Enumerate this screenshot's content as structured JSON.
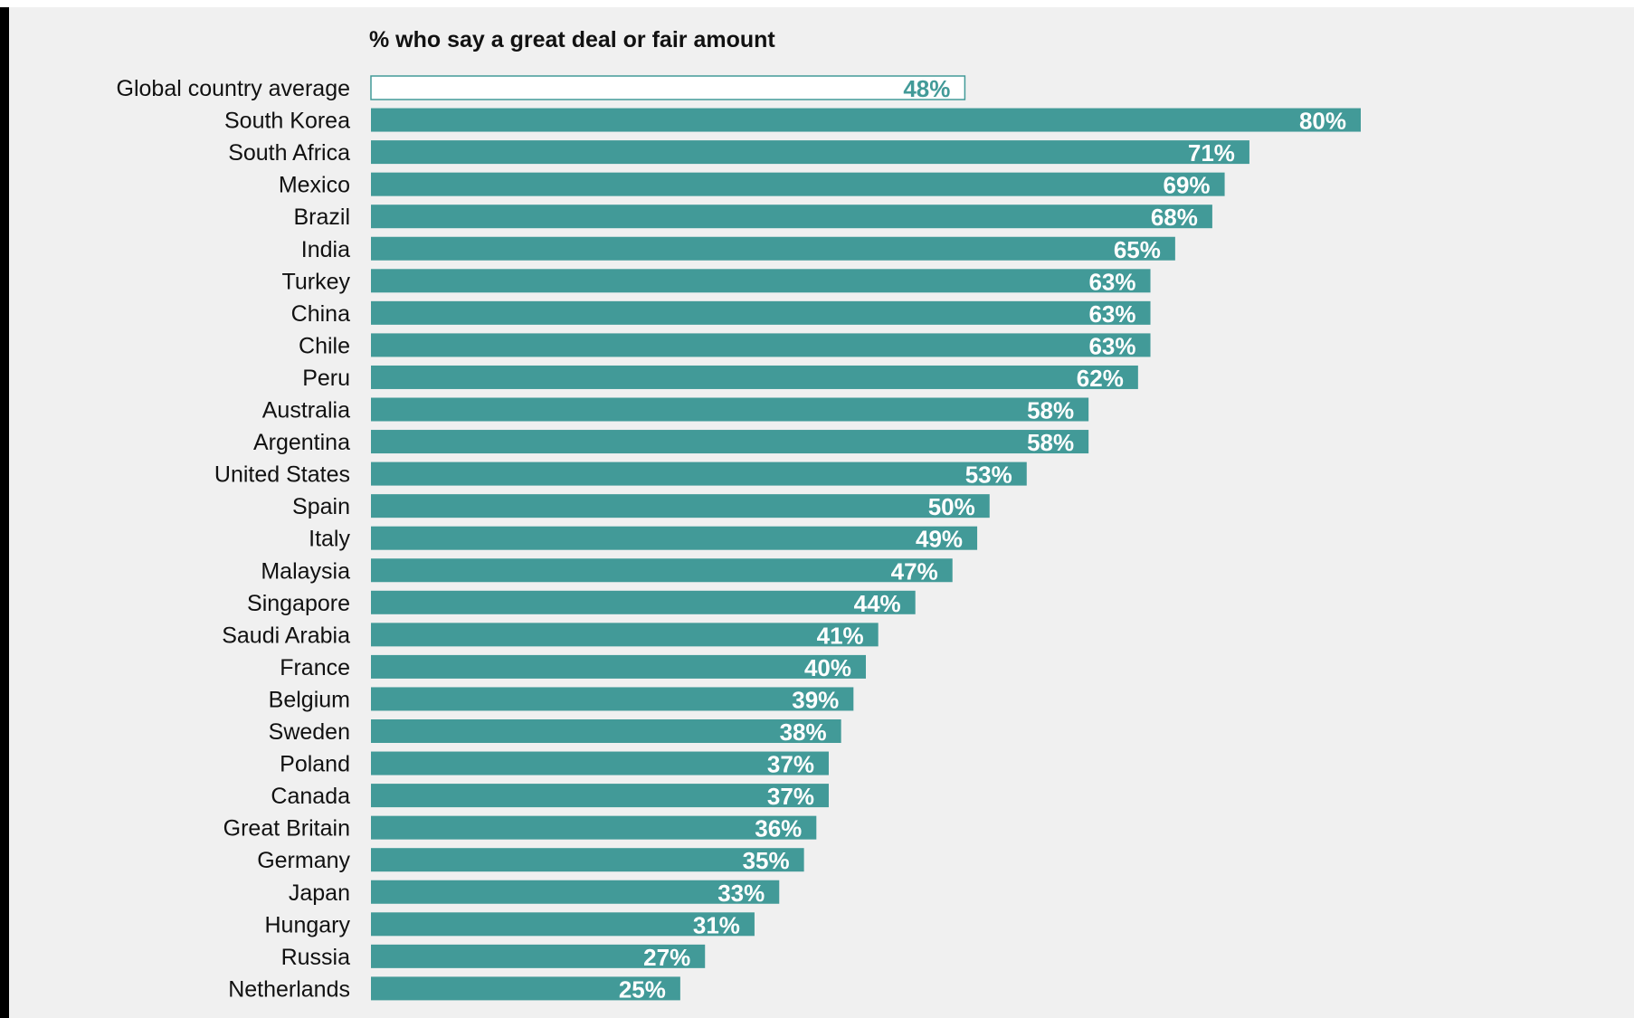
{
  "chart_data": {
    "type": "bar",
    "orientation": "horizontal",
    "subtitle": "% who say a great deal or fair amount",
    "categories": [
      "Global country average",
      "South Korea",
      "South Africa",
      "Mexico",
      "Brazil",
      "India",
      "Turkey",
      "China",
      "Chile",
      "Peru",
      "Australia",
      "Argentina",
      "United States",
      "Spain",
      "Italy",
      "Malaysia",
      "Singapore",
      "Saudi Arabia",
      "France",
      "Belgium",
      "Sweden",
      "Poland",
      "Canada",
      "Great Britain",
      "Germany",
      "Japan",
      "Hungary",
      "Russia",
      "Netherlands"
    ],
    "values": [
      48,
      80,
      71,
      69,
      68,
      65,
      63,
      63,
      63,
      62,
      58,
      58,
      53,
      50,
      49,
      47,
      44,
      41,
      40,
      39,
      38,
      37,
      37,
      36,
      35,
      33,
      31,
      27,
      25
    ],
    "value_labels": [
      "48%",
      "80%",
      "71%",
      "69%",
      "68%",
      "65%",
      "63%",
      "63%",
      "63%",
      "62%",
      "58%",
      "58%",
      "53%",
      "50%",
      "49%",
      "47%",
      "44%",
      "41%",
      "40%",
      "39%",
      "38%",
      "37%",
      "37%",
      "36%",
      "35%",
      "33%",
      "31%",
      "27%",
      "25%"
    ],
    "highlight_index": 0,
    "grid": false,
    "legend": "none",
    "xlim": [
      0,
      100
    ],
    "colors": {
      "bar": "#429a98",
      "highlight_fill": "#ffffff",
      "highlight_stroke": "#429a98",
      "value_text": "#ffffff",
      "highlight_text": "#429a98",
      "background": "#f0f0f0"
    }
  }
}
